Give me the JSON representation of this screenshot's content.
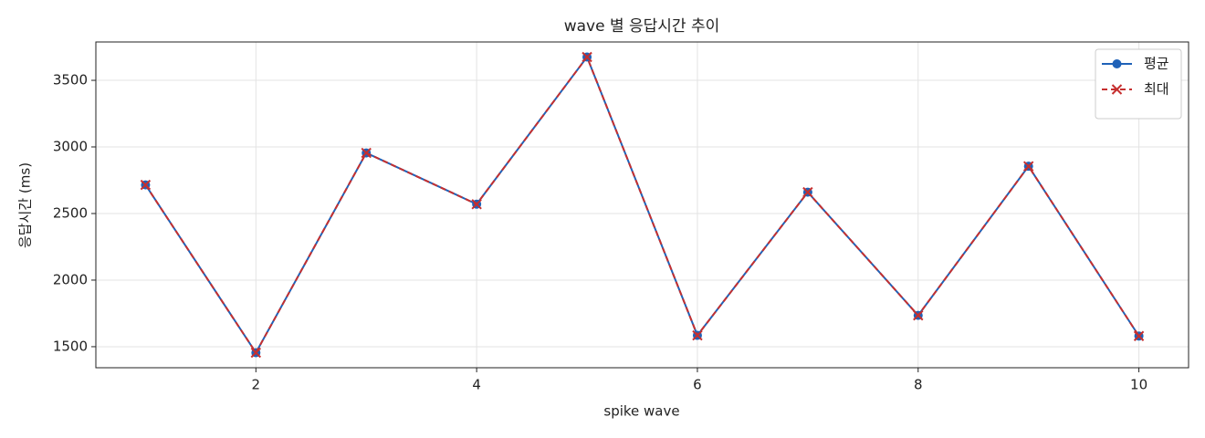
{
  "chart_data": {
    "type": "line",
    "title": "wave 별 응답시간 추이",
    "xlabel": "spike wave",
    "ylabel": "응답시간 (ms)",
    "x": [
      1,
      2,
      3,
      4,
      5,
      6,
      7,
      8,
      9,
      10
    ],
    "series": [
      {
        "name": "평균",
        "color": "#1f62b8",
        "marker": "o",
        "linestyle": "solid",
        "values": [
          2715,
          1455,
          2955,
          2570,
          3675,
          1585,
          2660,
          1735,
          2855,
          1580
        ]
      },
      {
        "name": "최대",
        "color": "#c62f2f",
        "marker": "x",
        "linestyle": "dashed",
        "values": [
          2715,
          1455,
          2955,
          2570,
          3675,
          1585,
          2660,
          1735,
          2855,
          1580
        ]
      }
    ],
    "xlim": [
      0.55,
      10.45
    ],
    "ylim": [
      1342,
      3788
    ],
    "xticks": [
      2,
      4,
      6,
      8,
      10
    ],
    "yticks": [
      1500,
      2000,
      2500,
      3000,
      3500
    ],
    "grid": true,
    "legend": "upper right"
  }
}
